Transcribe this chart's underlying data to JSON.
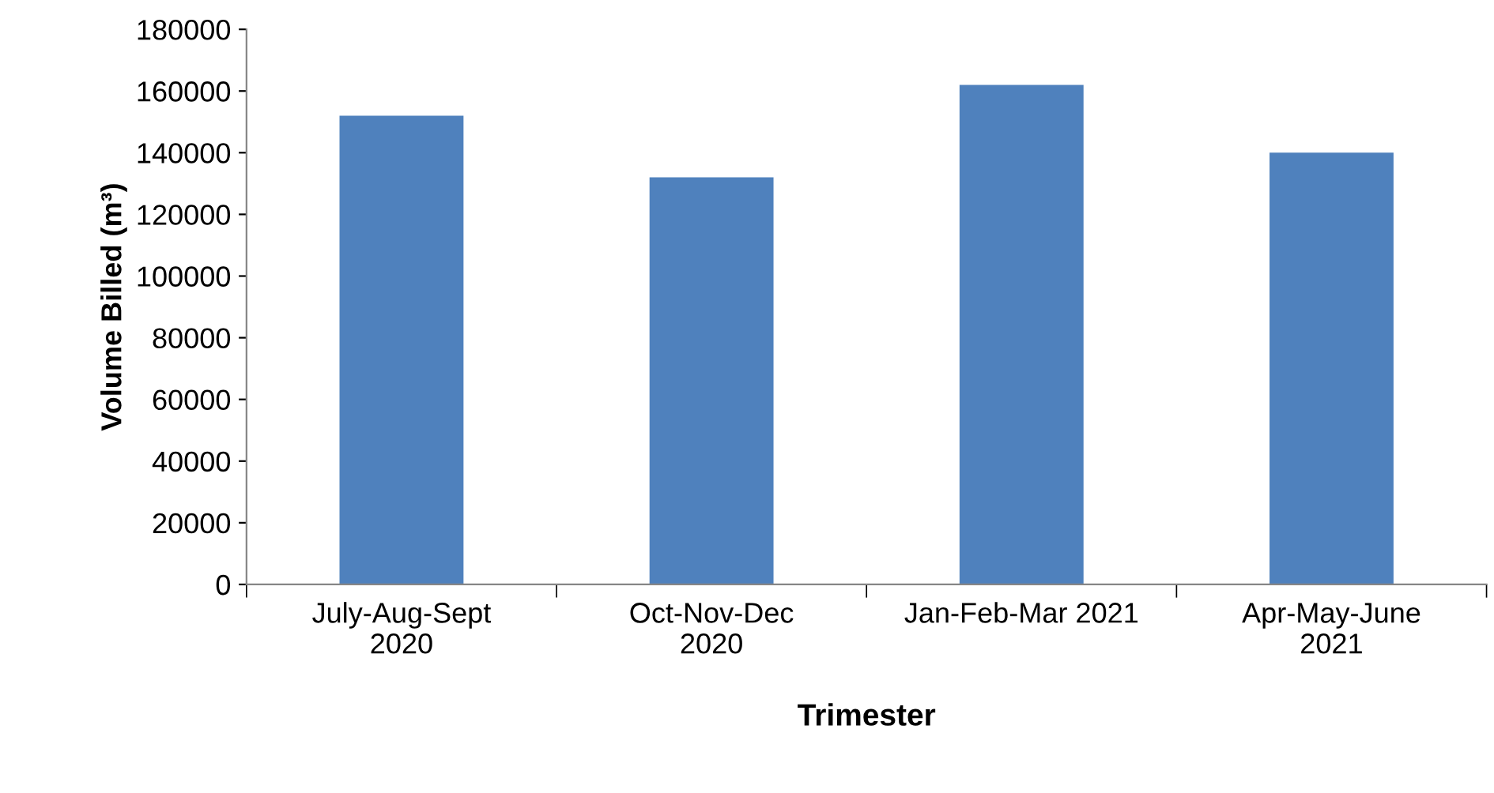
{
  "chart_data": {
    "type": "bar",
    "xlabel": "Trimester",
    "ylabel": "Volume Billed (m³)",
    "categories": [
      "July-Aug-Sept\n2020",
      "Oct-Nov-Dec\n2020",
      "Jan-Feb-Mar 2021",
      "Apr-May-June\n2021"
    ],
    "values": [
      152000,
      132000,
      162000,
      140000
    ],
    "color": "#4f81bd",
    "ylim": [
      0,
      180000
    ],
    "yticks": [
      0,
      20000,
      40000,
      60000,
      80000,
      100000,
      120000,
      140000,
      160000,
      180000
    ],
    "grid": false,
    "legend": false
  }
}
